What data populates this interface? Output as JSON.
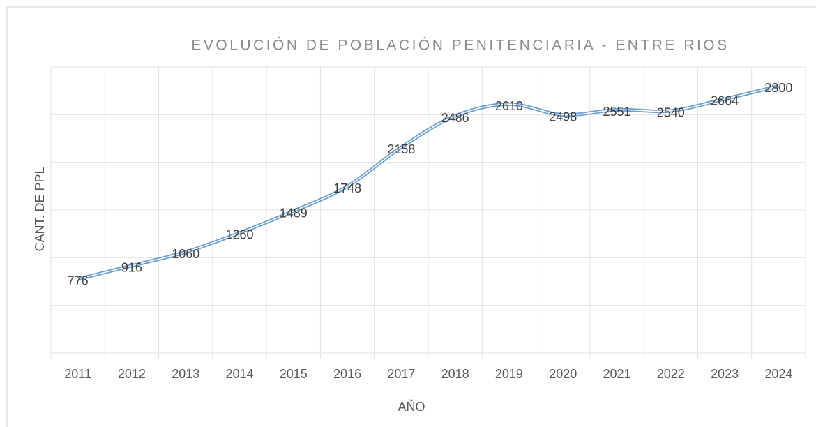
{
  "chart_data": {
    "type": "line",
    "title": "EVOLUCIÓN DE POBLACIÓN PENITENCIARIA - ENTRE RIOS",
    "x_label": "AÑO",
    "y_label": "CANT. DE PPL",
    "categories": [
      "2011",
      "2012",
      "2013",
      "2014",
      "2015",
      "2016",
      "2017",
      "2018",
      "2019",
      "2020",
      "2021",
      "2022",
      "2023",
      "2024"
    ],
    "series": [
      {
        "name": "PPL",
        "color": "#6a9fd4",
        "values": [
          776,
          916,
          1060,
          1260,
          1489,
          1748,
          2158,
          2486,
          2610,
          2498,
          2551,
          2540,
          2664,
          2800
        ]
      }
    ],
    "ylim": [
      0,
      3000
    ],
    "yticks": [
      0,
      500,
      1000,
      1500,
      2000,
      2500,
      3000
    ],
    "grid": true
  }
}
